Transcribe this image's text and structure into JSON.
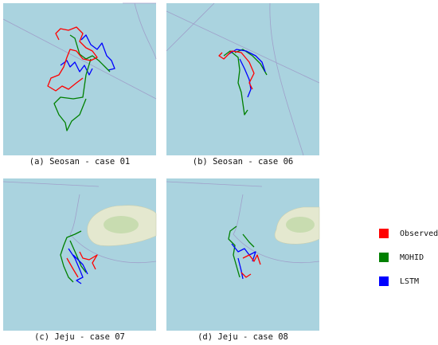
{
  "panels": [
    {
      "caption": "(a) Seosan - case 01"
    },
    {
      "caption": "(b) Seosan - case 06"
    },
    {
      "caption": "(c) Jeju - case 07"
    },
    {
      "caption": "(d) Jeju - case 08"
    }
  ],
  "legend": [
    {
      "label": "Observed",
      "color": "#ff0000"
    },
    {
      "label": "MOHID",
      "color": "#008000"
    },
    {
      "label": "LSTM",
      "color": "#0000ff"
    }
  ]
}
